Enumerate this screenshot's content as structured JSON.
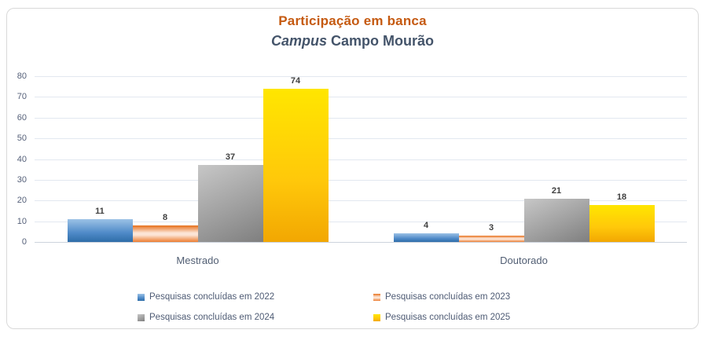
{
  "chart": {
    "title": "Participação em banca",
    "subtitle_italic": "Campus",
    "subtitle_rest": " Campo Mourão",
    "title_color": "#C55A11",
    "subtitle_color": "#44546A"
  },
  "chart_data": {
    "type": "bar",
    "title": "Participação em banca",
    "subtitle": "Campus Campo Mourão",
    "categories": [
      "Mestrado",
      "Doutorado"
    ],
    "series": [
      {
        "name": "Pesquisas concluídas em 2022",
        "values": [
          11,
          4
        ],
        "color": "#5B9BD5",
        "gradient_type": "vertical",
        "gradient": [
          "#9CC2E6",
          "#4F8AC8",
          "#2E6DA8"
        ]
      },
      {
        "name": "Pesquisas concluídas em 2023",
        "values": [
          8,
          3
        ],
        "color": "#ED7D31",
        "gradient_type": "center-light",
        "gradient": [
          "#E76F1A",
          "#FCE5D6",
          "#ED7D31"
        ]
      },
      {
        "name": "Pesquisas concluídas em 2024",
        "values": [
          37,
          21
        ],
        "color": "#A5A5A5",
        "gradient_type": "diagonal",
        "gradient": [
          "#C7C7C7",
          "#A0A0A0",
          "#7F7F7F"
        ]
      },
      {
        "name": "Pesquisas concluídas em 2025",
        "values": [
          74,
          18
        ],
        "color": "#FFC000",
        "gradient_type": "vertical",
        "gradient": [
          "#FFE600",
          "#FFC80A",
          "#F2A702"
        ]
      }
    ],
    "xlabel": "",
    "ylabel": "",
    "ylim": [
      0,
      80
    ],
    "yticks": [
      0,
      10,
      20,
      30,
      40,
      50,
      60,
      70,
      80
    ],
    "grid": true,
    "data_labels": true,
    "legend_position": "bottom"
  },
  "colors": {
    "gridline": "#E2E8F0",
    "axis_line": "#CDD3DC",
    "tick_label": "#56617A",
    "category_label": "#515E73",
    "data_label": "#3F3F3F",
    "legend_text": "#4E5B74",
    "frame_border": "#D9D9D9",
    "background": "#FFFFFF"
  }
}
